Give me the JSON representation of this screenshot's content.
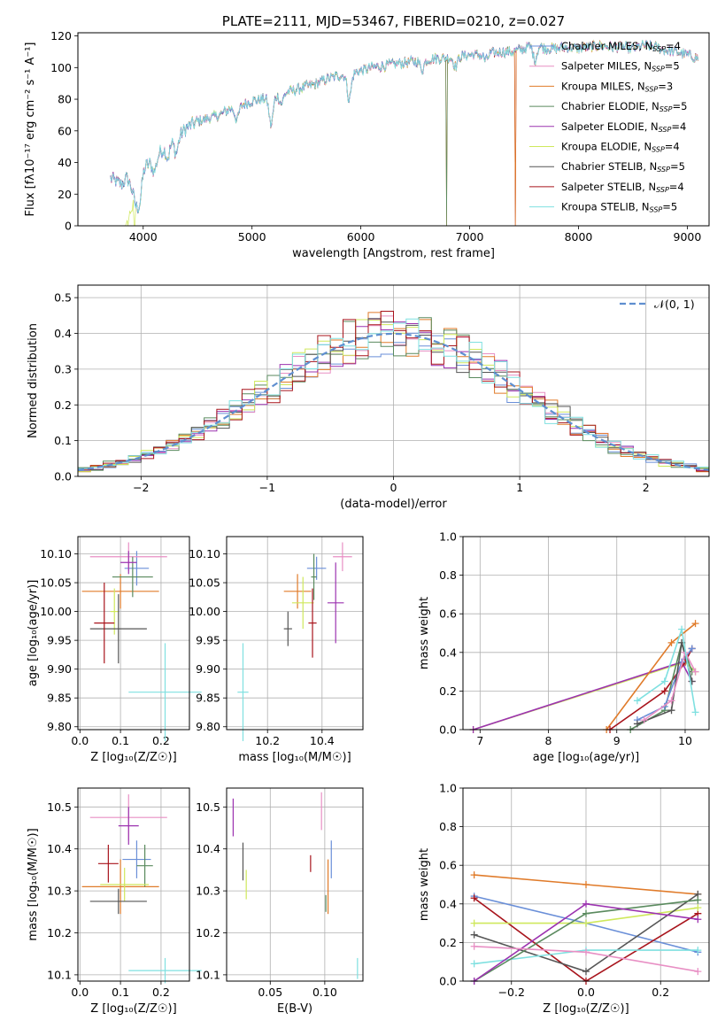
{
  "colors": {
    "chabrier_miles": "#6a8fd8",
    "salpeter_miles": "#e88fc4",
    "kroupa_miles": "#e07b2a",
    "chabrier_elodie": "#5a8a5e",
    "salpeter_elodie": "#9c33b0",
    "kroupa_elodie": "#cfe85c",
    "chabrier_stelib": "#555555",
    "salpeter_stelib": "#a8141c",
    "kroupa_stelib": "#7fe0e0",
    "normal_curve": "#5f8fd0"
  },
  "chart_data": [
    {
      "id": "spectrum",
      "type": "line",
      "title": "PLATE=2111, MJD=53467, FIBERID=0210, z=0.027",
      "xlabel": "wavelength [Angstrom, rest frame]",
      "ylabel": "Flux [fλ10⁻¹⁷ erg cm⁻² s⁻¹ A⁻¹]",
      "xlim": [
        3400,
        9200
      ],
      "ylim": [
        0,
        122
      ],
      "xticks": [
        4000,
        5000,
        6000,
        7000,
        8000,
        9000
      ],
      "yticks": [
        0,
        20,
        40,
        60,
        80,
        100,
        120
      ],
      "grid": false,
      "legend_position": "top-right",
      "legend": [
        {
          "key": "chabrier_miles",
          "label": "Chabrier MILES, N",
          "sub": "SSP",
          "tail": "=4"
        },
        {
          "key": "salpeter_miles",
          "label": "Salpeter MILES, N",
          "sub": "SSP",
          "tail": "=5"
        },
        {
          "key": "kroupa_miles",
          "label": "Kroupa MILES, N",
          "sub": "SSP",
          "tail": "=3"
        },
        {
          "key": "chabrier_elodie",
          "label": "Chabrier ELODIE, N",
          "sub": "SSP",
          "tail": "=5"
        },
        {
          "key": "salpeter_elodie",
          "label": "Salpeter ELODIE, N",
          "sub": "SSP",
          "tail": "=4"
        },
        {
          "key": "kroupa_elodie",
          "label": "Kroupa ELODIE, N",
          "sub": "SSP",
          "tail": "=4"
        },
        {
          "key": "chabrier_stelib",
          "label": "Chabrier STELIB, N",
          "sub": "SSP",
          "tail": "=5"
        },
        {
          "key": "salpeter_stelib",
          "label": "Salpeter STELIB, N",
          "sub": "SSP",
          "tail": "=4"
        },
        {
          "key": "kroupa_stelib",
          "label": "Kroupa STELIB, N",
          "sub": "SSP",
          "tail": "=5"
        }
      ],
      "continuum": [
        [
          3700,
          30
        ],
        [
          3800,
          26
        ],
        [
          3850,
          30
        ],
        [
          3900,
          24
        ],
        [
          3950,
          33
        ],
        [
          4000,
          36
        ],
        [
          4100,
          42
        ],
        [
          4200,
          50
        ],
        [
          4300,
          55
        ],
        [
          4400,
          62
        ],
        [
          4500,
          66
        ],
        [
          4600,
          68
        ],
        [
          4700,
          70
        ],
        [
          4800,
          74
        ],
        [
          4900,
          76
        ],
        [
          5000,
          79
        ],
        [
          5100,
          80
        ],
        [
          5200,
          82
        ],
        [
          5300,
          84
        ],
        [
          5400,
          86
        ],
        [
          5500,
          88
        ],
        [
          5600,
          90
        ],
        [
          5700,
          93
        ],
        [
          5800,
          95
        ],
        [
          5900,
          96
        ],
        [
          6000,
          98
        ],
        [
          6100,
          100
        ],
        [
          6200,
          101
        ],
        [
          6300,
          102
        ],
        [
          6400,
          103
        ],
        [
          6500,
          104
        ],
        [
          6600,
          105
        ],
        [
          6700,
          106
        ],
        [
          6800,
          106
        ],
        [
          6900,
          107
        ],
        [
          7000,
          108
        ],
        [
          7100,
          108
        ],
        [
          7200,
          109
        ],
        [
          7300,
          110
        ],
        [
          7400,
          110
        ],
        [
          7500,
          112
        ],
        [
          7600,
          115
        ],
        [
          7700,
          112
        ],
        [
          7800,
          112
        ],
        [
          7900,
          113
        ],
        [
          8000,
          112
        ],
        [
          8100,
          113
        ],
        [
          8200,
          114
        ],
        [
          8300,
          113
        ],
        [
          8400,
          113
        ],
        [
          8500,
          112
        ],
        [
          8600,
          114
        ],
        [
          8700,
          113
        ],
        [
          8800,
          111
        ],
        [
          8900,
          110
        ],
        [
          9000,
          108
        ],
        [
          9100,
          106
        ]
      ],
      "absorption_features": [
        [
          3934,
          15
        ],
        [
          3968,
          18
        ],
        [
          4102,
          8
        ],
        [
          4226,
          8
        ],
        [
          4304,
          9
        ],
        [
          4861,
          8
        ],
        [
          5175,
          18
        ],
        [
          5270,
          6
        ],
        [
          5893,
          16
        ],
        [
          6563,
          6
        ],
        [
          6870,
          6
        ],
        [
          7150,
          4
        ],
        [
          7600,
          10
        ]
      ],
      "dropouts": [
        {
          "key": "kroupa_elodie",
          "x": 3920
        },
        {
          "key": "kroupa_miles",
          "x": 6790
        },
        {
          "key": "chabrier_elodie",
          "x": 6790
        },
        {
          "key": "salpeter_stelib",
          "x": 7420
        },
        {
          "key": "kroupa_miles",
          "x": 7420
        }
      ]
    },
    {
      "id": "residuals",
      "type": "step",
      "xlabel": "(data-model)/error",
      "ylabel": "Normed distribution",
      "xlim": [
        -2.5,
        2.5
      ],
      "ylim": [
        0,
        0.535
      ],
      "xticks": [
        -2,
        -1,
        0,
        1,
        2
      ],
      "yticks": [
        0.0,
        0.1,
        0.2,
        0.3,
        0.4,
        0.5
      ],
      "grid": true,
      "bin_width": 0.1,
      "legend_position": "top-right",
      "normal_label": "𝒩(0, 1)",
      "series_keys": [
        "chabrier_miles",
        "salpeter_miles",
        "kroupa_miles",
        "chabrier_elodie",
        "salpeter_elodie",
        "kroupa_elodie",
        "chabrier_stelib",
        "salpeter_stelib",
        "kroupa_stelib"
      ]
    },
    {
      "id": "age_vs_Z",
      "type": "errorbar",
      "xlabel": "Z [log₁₀(Z/Z☉)]",
      "ylabel": "age  [log₁₀(age/yr)]",
      "xlim": [
        -0.005,
        0.27
      ],
      "ylim": [
        9.795,
        10.13
      ],
      "xticks": [
        0.0,
        0.1,
        0.2
      ],
      "yticks": [
        9.8,
        9.85,
        9.9,
        9.95,
        10.0,
        10.05,
        10.1
      ],
      "grid": true,
      "points": [
        {
          "key": "chabrier_miles",
          "x": 0.14,
          "xerr": 0.03,
          "y": 10.075,
          "yerr": 0.03
        },
        {
          "key": "salpeter_miles",
          "x": 0.12,
          "xerr": 0.095,
          "y": 10.095,
          "yerr": 0.025
        },
        {
          "key": "kroupa_miles",
          "x": 0.1,
          "xerr": 0.095,
          "y": 10.035,
          "yerr": 0.03
        },
        {
          "key": "chabrier_elodie",
          "x": 0.13,
          "xerr": 0.05,
          "y": 10.06,
          "yerr": 0.035
        },
        {
          "key": "salpeter_elodie",
          "x": 0.12,
          "xerr": 0.02,
          "y": 10.085,
          "yerr": 0.02
        },
        {
          "key": "kroupa_elodie",
          "x": 0.085,
          "xerr": 0.01,
          "y": 10.0,
          "yerr": 0.04
        },
        {
          "key": "chabrier_stelib",
          "x": 0.095,
          "xerr": 0.07,
          "y": 9.97,
          "yerr": 0.06
        },
        {
          "key": "salpeter_stelib",
          "x": 0.06,
          "xerr": 0.025,
          "y": 9.98,
          "yerr": 0.07
        },
        {
          "key": "kroupa_stelib",
          "x": 0.21,
          "xerr": 0.09,
          "y": 9.86,
          "yerr": 0.085
        }
      ]
    },
    {
      "id": "age_vs_mass",
      "type": "errorbar",
      "xlabel": "mass [log₁₀(M/M☉)]",
      "ylabel": "",
      "xlim": [
        10.05,
        10.55
      ],
      "ylim": [
        9.795,
        10.13
      ],
      "xticks": [
        10.2,
        10.4
      ],
      "yticks": [
        9.8,
        9.85,
        9.9,
        9.95,
        10.0,
        10.05,
        10.1
      ],
      "grid": true,
      "points": [
        {
          "key": "chabrier_miles",
          "x": 10.38,
          "xerr": 0.035,
          "y": 10.075,
          "yerr": 0.02
        },
        {
          "key": "salpeter_miles",
          "x": 10.475,
          "xerr": 0.035,
          "y": 10.095,
          "yerr": 0.025
        },
        {
          "key": "kroupa_miles",
          "x": 10.31,
          "xerr": 0.05,
          "y": 10.035,
          "yerr": 0.03
        },
        {
          "key": "chabrier_elodie",
          "x": 10.37,
          "xerr": 0.01,
          "y": 10.06,
          "yerr": 0.04
        },
        {
          "key": "salpeter_elodie",
          "x": 10.45,
          "xerr": 0.03,
          "y": 10.015,
          "yerr": 0.07
        },
        {
          "key": "kroupa_elodie",
          "x": 10.33,
          "xerr": 0.04,
          "y": 10.015,
          "yerr": 0.045
        },
        {
          "key": "chabrier_stelib",
          "x": 10.275,
          "xerr": 0.015,
          "y": 9.97,
          "yerr": 0.03
        },
        {
          "key": "salpeter_stelib",
          "x": 10.365,
          "xerr": 0.015,
          "y": 9.98,
          "yerr": 0.06
        },
        {
          "key": "kroupa_stelib",
          "x": 10.11,
          "xerr": 0.02,
          "y": 9.86,
          "yerr": 0.085
        }
      ]
    },
    {
      "id": "weight_vs_age",
      "type": "line",
      "xlabel": "age  [log₁₀(age/yr)]",
      "ylabel": "mass weight",
      "xlim": [
        6.75,
        10.35
      ],
      "ylim": [
        0,
        1.0
      ],
      "xticks": [
        7,
        8,
        9,
        10
      ],
      "yticks": [
        0.0,
        0.2,
        0.4,
        0.6,
        0.8,
        1.0
      ],
      "grid": true,
      "series": [
        {
          "key": "kroupa_elodie",
          "x": [
            6.9,
            10.0,
            10.15
          ],
          "y": [
            0.0,
            0.35,
            0.3
          ]
        },
        {
          "key": "salpeter_elodie",
          "x": [
            6.9,
            9.95,
            10.1
          ],
          "y": [
            0.0,
            0.35,
            0.25
          ]
        },
        {
          "key": "kroupa_miles",
          "x": [
            8.85,
            9.8,
            10.15
          ],
          "y": [
            0.0,
            0.45,
            0.55
          ]
        },
        {
          "key": "salpeter_stelib",
          "x": [
            8.9,
            9.7,
            10.0,
            10.1
          ],
          "y": [
            0.0,
            0.2,
            0.35,
            0.42
          ]
        },
        {
          "key": "chabrier_elodie",
          "x": [
            9.2,
            9.7,
            9.95,
            10.1
          ],
          "y": [
            0.0,
            0.1,
            0.45,
            0.3
          ]
        },
        {
          "key": "chabrier_miles",
          "x": [
            9.3,
            9.7,
            9.95,
            10.1
          ],
          "y": [
            0.05,
            0.12,
            0.35,
            0.42
          ]
        },
        {
          "key": "chabrier_stelib",
          "x": [
            9.3,
            9.8,
            9.95,
            10.1
          ],
          "y": [
            0.03,
            0.1,
            0.45,
            0.25
          ]
        },
        {
          "key": "salpeter_miles",
          "x": [
            9.4,
            9.8,
            10.0,
            10.15
          ],
          "y": [
            0.05,
            0.15,
            0.4,
            0.3
          ]
        },
        {
          "key": "kroupa_stelib",
          "x": [
            9.3,
            9.7,
            9.95,
            10.15
          ],
          "y": [
            0.15,
            0.25,
            0.52,
            0.09
          ]
        }
      ]
    },
    {
      "id": "mass_vs_Z",
      "type": "errorbar",
      "xlabel": "Z [log₁₀(Z/Z☉)]",
      "ylabel": "mass [log₁₀(M/M☉)]",
      "xlim": [
        -0.005,
        0.27
      ],
      "ylim": [
        10.085,
        10.545
      ],
      "xticks": [
        0.0,
        0.1,
        0.2
      ],
      "yticks": [
        10.1,
        10.2,
        10.3,
        10.4,
        10.5
      ],
      "grid": true,
      "points": [
        {
          "key": "chabrier_miles",
          "x": 0.14,
          "xerr": 0.035,
          "y": 10.375,
          "yerr": 0.045
        },
        {
          "key": "salpeter_miles",
          "x": 0.12,
          "xerr": 0.095,
          "y": 10.475,
          "yerr": 0.055
        },
        {
          "key": "kroupa_miles",
          "x": 0.1,
          "xerr": 0.095,
          "y": 10.31,
          "yerr": 0.065
        },
        {
          "key": "chabrier_elodie",
          "x": 0.16,
          "xerr": 0.02,
          "y": 10.36,
          "yerr": 0.05
        },
        {
          "key": "salpeter_elodie",
          "x": 0.12,
          "xerr": 0.025,
          "y": 10.455,
          "yerr": 0.045
        },
        {
          "key": "kroupa_elodie",
          "x": 0.11,
          "xerr": 0.06,
          "y": 10.315,
          "yerr": 0.04
        },
        {
          "key": "chabrier_stelib",
          "x": 0.095,
          "xerr": 0.07,
          "y": 10.275,
          "yerr": 0.03
        },
        {
          "key": "salpeter_stelib",
          "x": 0.07,
          "xerr": 0.025,
          "y": 10.365,
          "yerr": 0.045
        },
        {
          "key": "kroupa_stelib",
          "x": 0.21,
          "xerr": 0.09,
          "y": 10.11,
          "yerr": 0.03
        }
      ]
    },
    {
      "id": "mass_vs_ebv",
      "type": "errorbar",
      "xlabel": "E(B-V)",
      "ylabel": "",
      "xlim": [
        0.01,
        0.135
      ],
      "ylim": [
        10.085,
        10.545
      ],
      "xticks": [
        0.05,
        0.1
      ],
      "yticks": [
        10.1,
        10.2,
        10.3,
        10.4,
        10.5
      ],
      "grid": true,
      "points": [
        {
          "key": "chabrier_miles",
          "x": 0.106,
          "xerr": 0,
          "y": 10.375,
          "yerr": 0.045
        },
        {
          "key": "salpeter_miles",
          "x": 0.097,
          "xerr": 0,
          "y": 10.49,
          "yerr": 0.045
        },
        {
          "key": "kroupa_miles",
          "x": 0.103,
          "xerr": 0,
          "y": 10.31,
          "yerr": 0.065
        },
        {
          "key": "chabrier_elodie",
          "x": 0.101,
          "xerr": 0,
          "y": 10.27,
          "yerr": 0.02
        },
        {
          "key": "salpeter_elodie",
          "x": 0.016,
          "xerr": 0,
          "y": 10.475,
          "yerr": 0.045
        },
        {
          "key": "kroupa_elodie",
          "x": 0.028,
          "xerr": 0,
          "y": 10.315,
          "yerr": 0.035
        },
        {
          "key": "chabrier_stelib",
          "x": 0.025,
          "xerr": 0,
          "y": 10.37,
          "yerr": 0.045
        },
        {
          "key": "salpeter_stelib",
          "x": 0.087,
          "xerr": 0,
          "y": 10.365,
          "yerr": 0.02
        },
        {
          "key": "kroupa_stelib",
          "x": 0.13,
          "xerr": 0,
          "y": 10.115,
          "yerr": 0.025
        }
      ]
    },
    {
      "id": "weight_vs_Z",
      "type": "line",
      "xlabel": "Z [log₁₀(Z/Z☉)]",
      "ylabel": "mass weight",
      "xlim": [
        -0.33,
        0.33
      ],
      "ylim": [
        0,
        1.0
      ],
      "xticks": [
        -0.2,
        0.0,
        0.2
      ],
      "yticks": [
        0.0,
        0.2,
        0.4,
        0.6,
        0.8,
        1.0
      ],
      "grid": true,
      "series": [
        {
          "key": "kroupa_miles",
          "x": [
            -0.3,
            0.0,
            0.3
          ],
          "y": [
            0.55,
            0.5,
            0.45
          ]
        },
        {
          "key": "chabrier_miles",
          "x": [
            -0.3,
            0.0,
            0.3
          ],
          "y": [
            0.44,
            0.3,
            0.15
          ]
        },
        {
          "key": "salpeter_stelib",
          "x": [
            -0.3,
            0.0,
            0.3
          ],
          "y": [
            0.43,
            0.0,
            0.35
          ]
        },
        {
          "key": "kroupa_elodie",
          "x": [
            -0.3,
            0.0,
            0.3
          ],
          "y": [
            0.3,
            0.3,
            0.38
          ]
        },
        {
          "key": "chabrier_stelib",
          "x": [
            -0.3,
            0.0,
            0.3
          ],
          "y": [
            0.24,
            0.05,
            0.45
          ]
        },
        {
          "key": "kroupa_stelib",
          "x": [
            -0.3,
            0.0,
            0.3
          ],
          "y": [
            0.09,
            0.16,
            0.16
          ]
        },
        {
          "key": "chabrier_elodie",
          "x": [
            -0.3,
            0.0,
            0.3
          ],
          "y": [
            0.0,
            0.35,
            0.42
          ]
        },
        {
          "key": "salpeter_elodie",
          "x": [
            -0.3,
            0.0,
            0.3
          ],
          "y": [
            0.0,
            0.4,
            0.32
          ]
        },
        {
          "key": "salpeter_miles",
          "x": [
            -0.3,
            0.0,
            0.3
          ],
          "y": [
            0.18,
            0.15,
            0.05
          ]
        }
      ]
    }
  ]
}
